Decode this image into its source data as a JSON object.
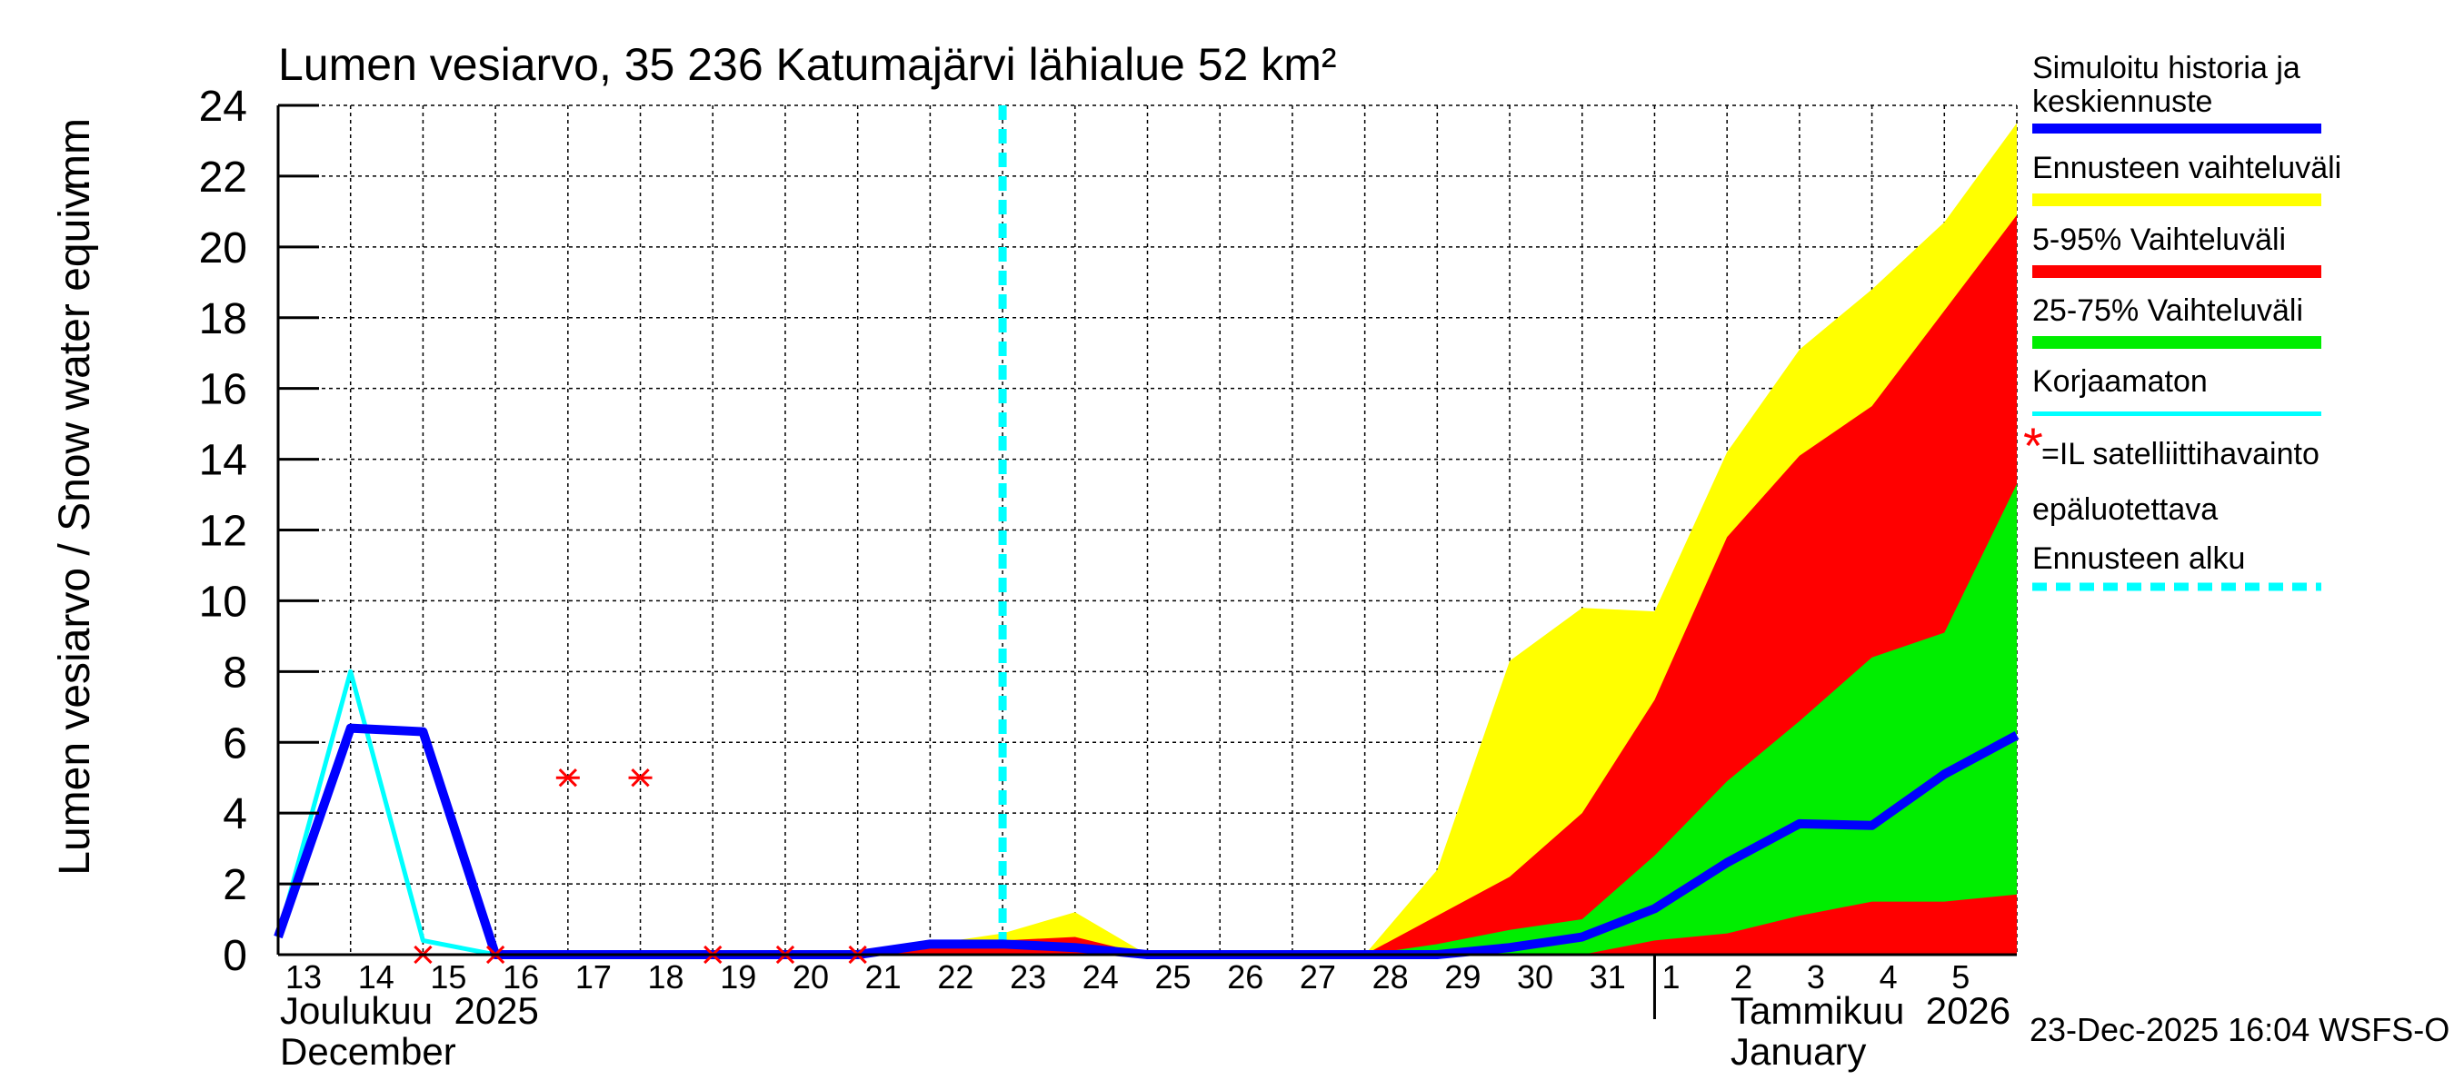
{
  "chart_data": {
    "type": "area",
    "title": "Lumen vesiarvo, 35 236 Katumajärvi lähialue 52 km²",
    "ylabel": "Lumen vesiarvo / Snow water equiv.",
    "yunit": "mm",
    "ylim": [
      0,
      24
    ],
    "yticks": [
      0,
      2,
      4,
      6,
      8,
      10,
      12,
      14,
      16,
      18,
      20,
      22,
      24
    ],
    "grid": true,
    "legend_position": "right",
    "x": [
      "2025-12-13",
      "2025-12-14",
      "2025-12-15",
      "2025-12-16",
      "2025-12-17",
      "2025-12-18",
      "2025-12-19",
      "2025-12-20",
      "2025-12-21",
      "2025-12-22",
      "2025-12-23",
      "2025-12-24",
      "2025-12-25",
      "2025-12-26",
      "2025-12-27",
      "2025-12-28",
      "2025-12-29",
      "2025-12-30",
      "2025-12-31",
      "2026-01-01",
      "2026-01-02",
      "2026-01-03",
      "2026-01-04",
      "2026-01-05",
      "2026-01-06"
    ],
    "xtick_labels": [
      "13",
      "14",
      "15",
      "16",
      "17",
      "18",
      "19",
      "20",
      "21",
      "22",
      "23",
      "24",
      "25",
      "26",
      "27",
      "28",
      "29",
      "30",
      "31",
      "1",
      "2",
      "3",
      "4",
      "5"
    ],
    "month_labels": [
      {
        "fi": "Joulukuu  2025",
        "en": "December"
      },
      {
        "fi": "Tammikuu  2026",
        "en": "January"
      }
    ],
    "forecast_start": "2025-12-23",
    "bands": [
      {
        "name": "Ennusteen vaihteluväli",
        "color": "#ffff00",
        "lower": [
          null,
          null,
          null,
          null,
          null,
          null,
          null,
          null,
          0,
          0,
          0,
          0,
          0,
          0,
          0,
          0,
          0,
          0,
          0,
          0,
          0,
          0,
          0,
          0,
          0
        ],
        "upper": [
          null,
          null,
          null,
          null,
          null,
          null,
          null,
          null,
          0,
          0.3,
          0.6,
          1.2,
          0,
          0,
          0,
          0,
          2.4,
          8.3,
          9.8,
          9.7,
          14.2,
          17.1,
          18.8,
          20.7,
          23.5
        ]
      },
      {
        "name": "5-95% Vaihteluväli",
        "color": "#ff0000",
        "lower": [
          null,
          null,
          null,
          null,
          null,
          null,
          null,
          null,
          0,
          0,
          0,
          0,
          0,
          0,
          0,
          0,
          0,
          0,
          0,
          0,
          0,
          0,
          0,
          0,
          0
        ],
        "upper": [
          null,
          null,
          null,
          null,
          null,
          null,
          null,
          null,
          0,
          0.3,
          0.4,
          0.5,
          0,
          0,
          0,
          0,
          1.1,
          2.2,
          4.0,
          7.2,
          11.8,
          14.1,
          15.5,
          18.2,
          20.9
        ]
      },
      {
        "name": "25-75% Vaihteluväli",
        "color": "#00ee00",
        "lower": [
          null,
          null,
          null,
          null,
          null,
          null,
          null,
          null,
          null,
          null,
          null,
          null,
          null,
          null,
          null,
          0,
          0,
          0,
          0,
          0.4,
          0.6,
          1.1,
          1.5,
          1.5,
          1.7
        ],
        "upper": [
          null,
          null,
          null,
          null,
          null,
          null,
          null,
          null,
          null,
          null,
          null,
          null,
          null,
          null,
          null,
          0,
          0.3,
          0.7,
          1.0,
          2.8,
          4.9,
          6.6,
          8.4,
          9.1,
          13.3
        ]
      }
    ],
    "series": [
      {
        "name": "Simuloitu historia ja keskiennuste",
        "color": "#0000ff",
        "values": [
          0.5,
          6.4,
          6.3,
          0,
          0,
          0,
          0,
          0,
          0,
          0.3,
          0.3,
          0.2,
          0,
          0,
          0,
          0,
          0,
          0.2,
          0.5,
          1.3,
          2.6,
          3.7,
          3.65,
          5.1,
          6.2
        ]
      },
      {
        "name": "Korjaamaton",
        "color": "#00ffff",
        "values": [
          0.5,
          8.0,
          0.4,
          0,
          0,
          0,
          0,
          0,
          0,
          null,
          null,
          null,
          null,
          null,
          null,
          null,
          null,
          null,
          null,
          null,
          null,
          null,
          null,
          null,
          null
        ]
      }
    ],
    "satellite_observations": {
      "name": "=IL satelliittihavainto epäluotettava",
      "color": "#ff0000",
      "points": [
        {
          "x": "2025-12-15",
          "y": 0
        },
        {
          "x": "2025-12-16",
          "y": 0
        },
        {
          "x": "2025-12-17",
          "y": 5
        },
        {
          "x": "2025-12-18",
          "y": 5
        },
        {
          "x": "2025-12-19",
          "y": 0
        },
        {
          "x": "2025-12-20",
          "y": 0
        },
        {
          "x": "2025-12-21",
          "y": 0
        }
      ]
    }
  },
  "legend": {
    "sim_line1": "Simuloitu historia ja",
    "sim_line2": "keskiennuste",
    "range": "Ennusteen vaihteluväli",
    "p5_95": "5-95% Vaihteluväli",
    "p25_75": "25-75% Vaihteluväli",
    "uncorrected": "Korjaamaton",
    "sat_line1": "=IL satelliittihavainto",
    "sat_line2": "epäluotettava",
    "forecast_start": "Ennusteen alku",
    "star_glyph": "*"
  },
  "timestamp": "23-Dec-2025 16:04 WSFS-O"
}
